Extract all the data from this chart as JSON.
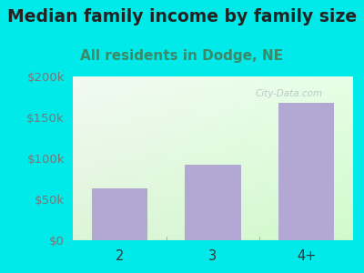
{
  "title": "Median family income by family size",
  "subtitle": "All residents in Dodge, NE",
  "categories": [
    "2",
    "3",
    "4+"
  ],
  "values": [
    63000,
    92000,
    168000
  ],
  "bar_color": "#b3a8d4",
  "title_color": "#222222",
  "subtitle_color": "#3a8a6a",
  "ytick_color": "#777777",
  "xtick_color": "#333333",
  "background_color": "#00eaea",
  "ylim": [
    0,
    200000
  ],
  "yticks": [
    0,
    50000,
    100000,
    150000,
    200000
  ],
  "ytick_labels": [
    "$0",
    "$50k",
    "$100k",
    "$150k",
    "$200k"
  ],
  "title_fontsize": 13.5,
  "subtitle_fontsize": 11,
  "tick_fontsize": 9.5,
  "watermark": "City-Data.com"
}
